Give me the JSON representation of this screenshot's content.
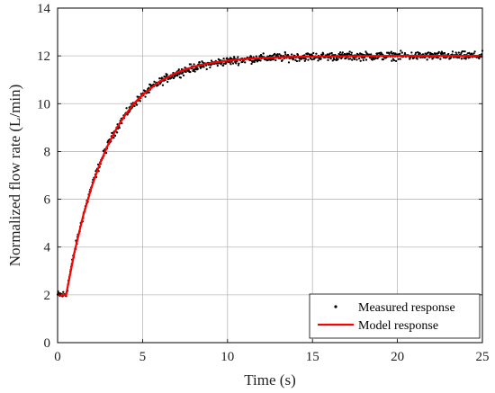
{
  "chart_data": {
    "type": "line",
    "title": "",
    "xlabel": "Time (s)",
    "ylabel": "Normalized flow rate (L/min)",
    "xlim": [
      0,
      25
    ],
    "ylim": [
      0,
      14
    ],
    "xticks": [
      0,
      5,
      10,
      15,
      20,
      25
    ],
    "yticks": [
      0,
      2,
      4,
      6,
      8,
      10,
      12,
      14
    ],
    "grid": true,
    "legend_position": "bottom-right",
    "series": [
      {
        "name": "Measured response",
        "kind": "scatter",
        "color": "#000000",
        "x_range": [
          0,
          25
        ],
        "initial_value": 2.0,
        "step_time": 0.5,
        "final_value": 12.0,
        "time_constant": 2.5,
        "noise_amplitude": 0.12
      },
      {
        "name": "Model response",
        "kind": "line",
        "color": "#ff0000",
        "x": [
          0,
          0.5,
          1,
          1.5,
          2,
          2.5,
          3,
          3.5,
          4,
          4.5,
          5,
          6,
          7,
          8,
          9,
          10,
          11,
          12,
          13,
          14,
          15,
          17.5,
          20,
          22.5,
          25
        ],
        "y": [
          2.0,
          2.0,
          3.81,
          5.3,
          6.51,
          7.51,
          8.33,
          9.0,
          9.55,
          10.01,
          10.37,
          10.93,
          11.3,
          11.55,
          11.7,
          11.8,
          11.87,
          11.91,
          11.94,
          11.96,
          11.97,
          11.99,
          12.0,
          12.0,
          12.0
        ]
      }
    ]
  },
  "legend": {
    "items": [
      "Measured response",
      "Model response"
    ]
  }
}
